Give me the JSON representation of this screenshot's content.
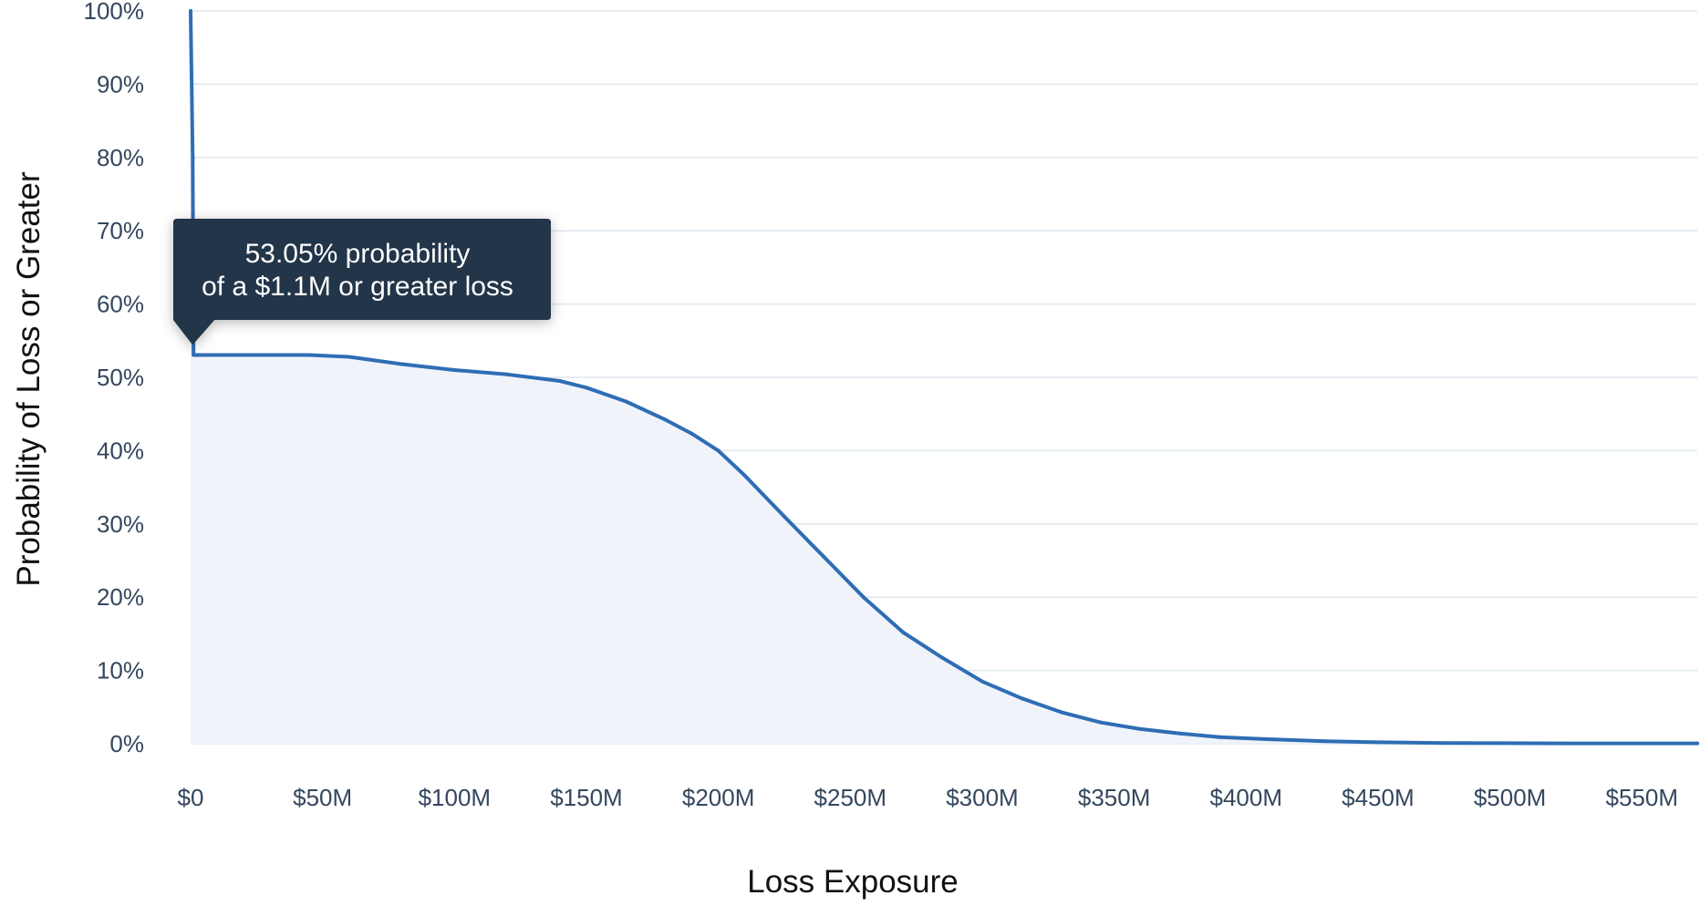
{
  "chart_data": {
    "type": "area",
    "xlabel": "Loss Exposure",
    "ylabel": "Probability of Loss or Greater",
    "x_unit": "$M",
    "y_unit": "%",
    "xlim": [
      0,
      571
    ],
    "ylim": [
      0,
      100
    ],
    "grid": true,
    "x_ticks": [
      {
        "value": 0,
        "label": "$0"
      },
      {
        "value": 50,
        "label": "$50M"
      },
      {
        "value": 100,
        "label": "$100M"
      },
      {
        "value": 150,
        "label": "$150M"
      },
      {
        "value": 200,
        "label": "$200M"
      },
      {
        "value": 250,
        "label": "$250M"
      },
      {
        "value": 300,
        "label": "$300M"
      },
      {
        "value": 350,
        "label": "$350M"
      },
      {
        "value": 400,
        "label": "$400M"
      },
      {
        "value": 450,
        "label": "$450M"
      },
      {
        "value": 500,
        "label": "$500M"
      },
      {
        "value": 550,
        "label": "$550M"
      }
    ],
    "y_ticks": [
      {
        "value": 0,
        "label": "0%"
      },
      {
        "value": 10,
        "label": "10%"
      },
      {
        "value": 20,
        "label": "20%"
      },
      {
        "value": 30,
        "label": "30%"
      },
      {
        "value": 40,
        "label": "40%"
      },
      {
        "value": 50,
        "label": "50%"
      },
      {
        "value": 60,
        "label": "60%"
      },
      {
        "value": 70,
        "label": "70%"
      },
      {
        "value": 80,
        "label": "80%"
      },
      {
        "value": 90,
        "label": "90%"
      },
      {
        "value": 100,
        "label": "100%"
      }
    ],
    "series": [
      {
        "color": "#2f6db5",
        "fill_color": "#eef3fa",
        "points": [
          {
            "x": 0,
            "y": 100
          },
          {
            "x": 0.8,
            "y": 80
          },
          {
            "x": 1.1,
            "y": 53.05
          },
          {
            "x": 45,
            "y": 53.05
          },
          {
            "x": 60,
            "y": 52.8
          },
          {
            "x": 80,
            "y": 51.8
          },
          {
            "x": 100,
            "y": 51.0
          },
          {
            "x": 120,
            "y": 50.4
          },
          {
            "x": 140,
            "y": 49.5
          },
          {
            "x": 150,
            "y": 48.6
          },
          {
            "x": 165,
            "y": 46.7
          },
          {
            "x": 180,
            "y": 44.2
          },
          {
            "x": 190,
            "y": 42.3
          },
          {
            "x": 200,
            "y": 40.0
          },
          {
            "x": 210,
            "y": 36.6
          },
          {
            "x": 225,
            "y": 31.0
          },
          {
            "x": 240,
            "y": 25.5
          },
          {
            "x": 255,
            "y": 20.0
          },
          {
            "x": 270,
            "y": 15.2
          },
          {
            "x": 285,
            "y": 11.7
          },
          {
            "x": 300,
            "y": 8.5
          },
          {
            "x": 315,
            "y": 6.2
          },
          {
            "x": 330,
            "y": 4.3
          },
          {
            "x": 345,
            "y": 2.9
          },
          {
            "x": 360,
            "y": 2.0
          },
          {
            "x": 375,
            "y": 1.4
          },
          {
            "x": 390,
            "y": 0.9
          },
          {
            "x": 410,
            "y": 0.6
          },
          {
            "x": 430,
            "y": 0.35
          },
          {
            "x": 450,
            "y": 0.2
          },
          {
            "x": 475,
            "y": 0.1
          },
          {
            "x": 520,
            "y": 0.05
          },
          {
            "x": 571,
            "y": 0.05
          }
        ]
      }
    ],
    "annotation": {
      "x": 1.1,
      "y": 53.05,
      "line1": "53.05% probability",
      "line2": "of a $1.1M or greater loss",
      "background": "#213548",
      "text_color": "#ffffff"
    },
    "colors": {
      "grid": "#dde6ee",
      "tick_label": "#34475e",
      "axis_title": "#111111"
    }
  }
}
